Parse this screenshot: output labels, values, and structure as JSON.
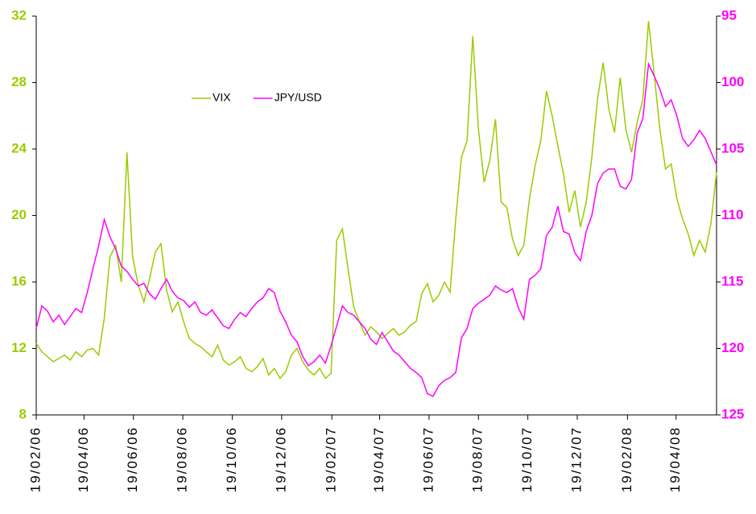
{
  "chart_data": {
    "type": "line",
    "x": [
      "2006-02-19",
      "2006-02-26",
      "2006-03-05",
      "2006-03-12",
      "2006-03-19",
      "2006-03-26",
      "2006-04-02",
      "2006-04-09",
      "2006-04-16",
      "2006-04-23",
      "2006-04-30",
      "2006-05-07",
      "2006-05-14",
      "2006-05-21",
      "2006-05-28",
      "2006-06-04",
      "2006-06-11",
      "2006-06-18",
      "2006-06-25",
      "2006-07-02",
      "2006-07-09",
      "2006-07-16",
      "2006-07-23",
      "2006-07-30",
      "2006-08-06",
      "2006-08-13",
      "2006-08-20",
      "2006-08-27",
      "2006-09-03",
      "2006-09-10",
      "2006-09-17",
      "2006-09-24",
      "2006-10-01",
      "2006-10-08",
      "2006-10-15",
      "2006-10-22",
      "2006-10-29",
      "2006-11-05",
      "2006-11-12",
      "2006-11-19",
      "2006-11-26",
      "2006-12-03",
      "2006-12-10",
      "2006-12-17",
      "2006-12-24",
      "2006-12-31",
      "2007-01-07",
      "2007-01-14",
      "2007-01-21",
      "2007-01-28",
      "2007-02-04",
      "2007-02-11",
      "2007-02-18",
      "2007-02-25",
      "2007-03-04",
      "2007-03-11",
      "2007-03-18",
      "2007-03-25",
      "2007-04-01",
      "2007-04-08",
      "2007-04-15",
      "2007-04-22",
      "2007-04-29",
      "2007-05-06",
      "2007-05-13",
      "2007-05-20",
      "2007-05-27",
      "2007-06-03",
      "2007-06-10",
      "2007-06-17",
      "2007-06-24",
      "2007-07-01",
      "2007-07-08",
      "2007-07-15",
      "2007-07-22",
      "2007-07-29",
      "2007-08-05",
      "2007-08-12",
      "2007-08-19",
      "2007-08-26",
      "2007-09-02",
      "2007-09-09",
      "2007-09-16",
      "2007-09-23",
      "2007-09-30",
      "2007-10-07",
      "2007-10-14",
      "2007-10-21",
      "2007-10-28",
      "2007-11-04",
      "2007-11-11",
      "2007-11-18",
      "2007-11-25",
      "2007-12-02",
      "2007-12-09",
      "2007-12-16",
      "2007-12-23",
      "2007-12-30",
      "2008-01-06",
      "2008-01-13",
      "2008-01-20",
      "2008-01-27",
      "2008-02-03",
      "2008-02-10",
      "2008-02-17",
      "2008-02-24",
      "2008-03-02",
      "2008-03-09",
      "2008-03-16",
      "2008-03-23",
      "2008-03-30",
      "2008-04-06",
      "2008-04-13",
      "2008-04-20",
      "2008-04-27",
      "2008-05-04",
      "2008-05-11",
      "2008-05-18",
      "2008-05-25",
      "2008-06-01",
      "2008-06-08"
    ],
    "series": [
      {
        "name": "VIX",
        "color": "#99cc00",
        "axis": "y",
        "values": [
          12.3,
          11.8,
          11.5,
          11.2,
          11.4,
          11.6,
          11.3,
          11.8,
          11.5,
          11.9,
          12.0,
          11.6,
          13.8,
          17.5,
          18.2,
          16.0,
          23.8,
          17.5,
          15.8,
          14.8,
          16.2,
          17.8,
          18.3,
          15.5,
          14.2,
          14.8,
          13.6,
          12.6,
          12.3,
          12.1,
          11.8,
          11.5,
          12.2,
          11.3,
          11.0,
          11.2,
          11.5,
          10.8,
          10.6,
          10.9,
          11.4,
          10.4,
          10.8,
          10.2,
          10.6,
          11.6,
          12.0,
          11.2,
          10.7,
          10.4,
          10.8,
          10.2,
          10.5,
          18.5,
          19.2,
          16.8,
          14.5,
          13.6,
          12.8,
          13.3,
          13.0,
          12.6,
          12.9,
          13.2,
          12.8,
          13.0,
          13.4,
          13.6,
          15.3,
          15.9,
          14.8,
          15.2,
          16.0,
          15.4,
          19.8,
          23.5,
          24.5,
          30.8,
          25.2,
          22.0,
          23.3,
          25.8,
          20.8,
          20.5,
          18.6,
          17.6,
          18.2,
          21.0,
          23.0,
          24.5,
          27.5,
          26.0,
          24.2,
          22.5,
          20.2,
          21.5,
          19.3,
          20.8,
          23.5,
          27.0,
          29.2,
          26.4,
          25.0,
          28.3,
          25.2,
          23.8,
          25.6,
          27.0,
          31.7,
          28.5,
          25.2,
          22.8,
          23.1,
          21.0,
          19.8,
          18.9,
          17.6,
          18.5,
          17.8,
          19.5,
          22.6
        ]
      },
      {
        "name": "JPY/USD",
        "color": "#ff00ff",
        "axis": "y2",
        "values": [
          118.5,
          116.8,
          117.2,
          118.0,
          117.5,
          118.2,
          117.6,
          117.0,
          117.3,
          115.8,
          114.0,
          112.3,
          110.3,
          111.6,
          112.5,
          113.8,
          114.2,
          114.8,
          115.3,
          115.1,
          115.9,
          116.3,
          115.5,
          114.8,
          115.7,
          116.2,
          116.4,
          116.9,
          116.5,
          117.3,
          117.5,
          117.1,
          117.7,
          118.3,
          118.5,
          117.8,
          117.3,
          117.6,
          117.0,
          116.5,
          116.2,
          115.5,
          115.8,
          117.2,
          118.0,
          119.0,
          119.5,
          120.6,
          121.3,
          121.0,
          120.5,
          121.1,
          119.8,
          118.3,
          116.8,
          117.3,
          117.5,
          118.0,
          118.5,
          119.3,
          119.7,
          118.8,
          119.5,
          120.2,
          120.5,
          121.0,
          121.5,
          121.8,
          122.2,
          123.4,
          123.6,
          122.8,
          122.4,
          122.2,
          121.8,
          119.2,
          118.5,
          117.0,
          116.6,
          116.3,
          116.0,
          115.3,
          115.6,
          115.8,
          115.5,
          116.9,
          117.8,
          114.8,
          114.5,
          114.0,
          111.5,
          110.9,
          109.3,
          111.2,
          111.4,
          112.8,
          113.4,
          111.2,
          110.0,
          107.6,
          106.8,
          106.5,
          106.5,
          107.8,
          108.0,
          107.3,
          103.8,
          102.7,
          98.6,
          99.5,
          100.5,
          101.8,
          101.3,
          102.5,
          104.2,
          104.8,
          104.3,
          103.6,
          104.2,
          105.2,
          106.2
        ]
      }
    ],
    "xlim": [
      "2006-02-19",
      "2008-06-08"
    ],
    "xticks": [
      {
        "value": "2006-02-19",
        "label": "19/02/06"
      },
      {
        "value": "2006-04-19",
        "label": "19/04/06"
      },
      {
        "value": "2006-06-19",
        "label": "19/06/06"
      },
      {
        "value": "2006-08-19",
        "label": "19/08/06"
      },
      {
        "value": "2006-10-19",
        "label": "19/10/06"
      },
      {
        "value": "2006-12-19",
        "label": "19/12/06"
      },
      {
        "value": "2007-02-19",
        "label": "19/02/07"
      },
      {
        "value": "2007-04-19",
        "label": "19/04/07"
      },
      {
        "value": "2007-06-19",
        "label": "19/06/07"
      },
      {
        "value": "2007-08-19",
        "label": "19/08/07"
      },
      {
        "value": "2007-10-19",
        "label": "19/10/07"
      },
      {
        "value": "2007-12-19",
        "label": "19/12/07"
      },
      {
        "value": "2008-02-19",
        "label": "19/02/08"
      },
      {
        "value": "2008-04-19",
        "label": "19/04/08"
      }
    ],
    "ylim": [
      8,
      32
    ],
    "yticks": [
      8,
      12,
      16,
      20,
      24,
      28,
      32
    ],
    "y2lim": [
      125,
      95
    ],
    "y2ticks": [
      95,
      100,
      105,
      110,
      115,
      120,
      125
    ],
    "legend": "upper-left"
  }
}
